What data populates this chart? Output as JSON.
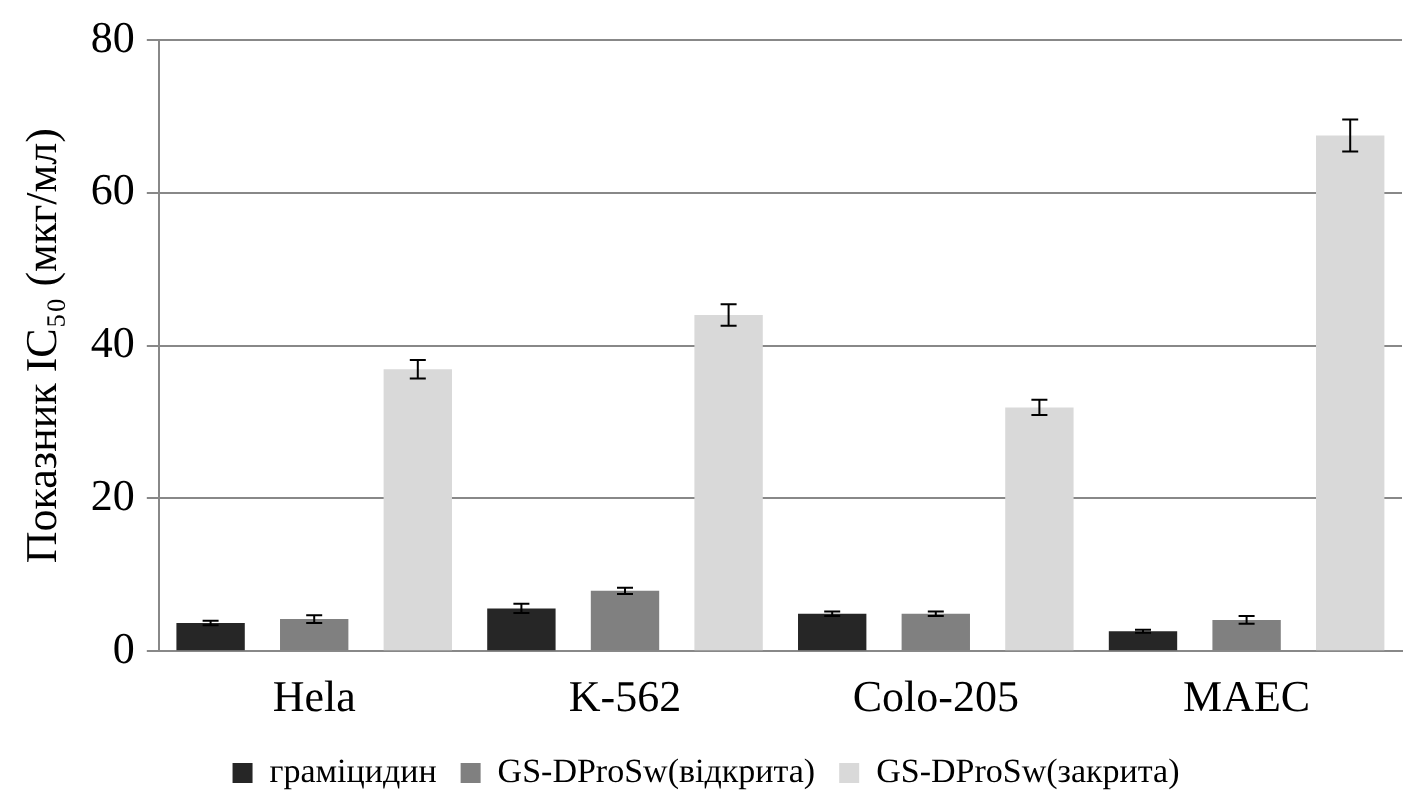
{
  "chart_data": {
    "type": "bar",
    "ylabel": "Показник IC₅₀ (мкг/мл)",
    "categories": [
      "Hela",
      "K-562",
      "Colo-205",
      "MAEC"
    ],
    "series": [
      {
        "name": "грамiцидин",
        "color": "#262626",
        "values": [
          3.7,
          5.6,
          4.9,
          2.6
        ],
        "errors": [
          0.3,
          0.6,
          0.3,
          0.2
        ]
      },
      {
        "name": "GS-DProSw(вiдкрита)",
        "color": "#808080",
        "values": [
          4.2,
          7.9,
          4.9,
          4.1
        ],
        "errors": [
          0.5,
          0.4,
          0.3,
          0.5
        ]
      },
      {
        "name": "GS-DProSw(закрита)",
        "color": "#d9d9d9",
        "values": [
          36.9,
          44,
          31.9,
          67.5
        ],
        "errors": [
          1.2,
          1.4,
          1,
          2.1
        ]
      }
    ],
    "ylim": [
      0,
      80
    ],
    "yticks": [
      0,
      20,
      40,
      60,
      80
    ],
    "grid": "y",
    "legend": "bottom"
  }
}
